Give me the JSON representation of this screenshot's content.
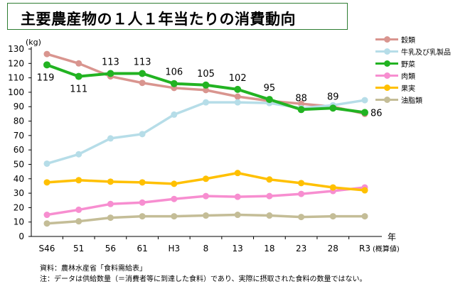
{
  "title": "主要農産物の１人１年当たりの消費動向",
  "chart_data": {
    "type": "line",
    "unit_label": "(kg)",
    "x_axis_label": "年",
    "categories": [
      "S46",
      "51",
      "56",
      "61",
      "H3",
      "8",
      "13",
      "18",
      "23",
      "28",
      "R3"
    ],
    "last_category_note": "(概算値)",
    "ylim": [
      0,
      130
    ],
    "yticks": [
      0,
      10,
      20,
      30,
      40,
      50,
      60,
      70,
      80,
      90,
      100,
      110,
      120,
      130
    ],
    "labeled_series": "野菜",
    "series": [
      {
        "name": "穀類",
        "color": "#d9958f",
        "values": [
          126.5,
          120,
          111,
          106.5,
          103,
          101.5,
          97,
          94,
          92,
          90,
          85
        ]
      },
      {
        "name": "牛乳及び乳製品",
        "color": "#b6dde8",
        "values": [
          50.5,
          57,
          68,
          71,
          84.5,
          93,
          93,
          92.5,
          89,
          91,
          94.5
        ]
      },
      {
        "name": "野菜",
        "color": "#22b322",
        "values": [
          119,
          111,
          113,
          113,
          106,
          105,
          102,
          95,
          88,
          89,
          86
        ],
        "labels": [
          "119",
          "111",
          "113",
          "113",
          "106",
          "105",
          "102",
          "95",
          "88",
          "89",
          "86"
        ]
      },
      {
        "name": "肉類",
        "color": "#f78ed0",
        "values": [
          15,
          18.5,
          22.5,
          23.5,
          26,
          28,
          27.5,
          28,
          29.5,
          31.5,
          34
        ]
      },
      {
        "name": "果実",
        "color": "#ffc000",
        "values": [
          37.5,
          39,
          38,
          37.5,
          36.5,
          40,
          44,
          39.5,
          37,
          34,
          32
        ]
      },
      {
        "name": "油脂類",
        "color": "#c4bd97",
        "values": [
          9,
          10.5,
          13,
          14,
          14,
          14.5,
          15,
          14.5,
          13.5,
          14,
          14
        ]
      }
    ]
  },
  "footnotes": {
    "source": "資料：農林水産省「食料需給表」",
    "note": "注：データは供給数量（＝消費者等に到達した食料）であり、実際に摂取された食料の数量ではない。"
  }
}
